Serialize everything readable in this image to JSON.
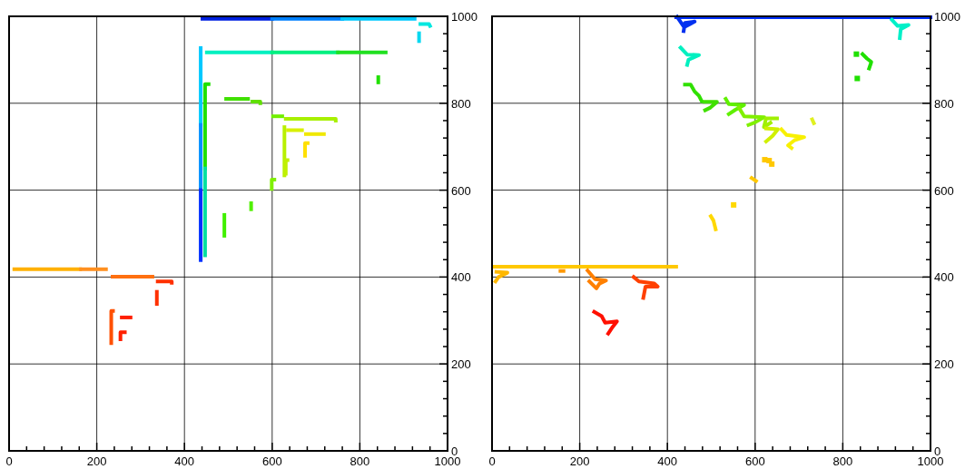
{
  "chart_data": [
    {
      "type": "line",
      "xlim": [
        0,
        1000
      ],
      "ylim": [
        0,
        1000
      ],
      "xticks": [
        0,
        {
          "value": 40,
          "label": null
        },
        {
          "value": 80,
          "label": null
        },
        {
          "value": 120,
          "label": null
        },
        {
          "value": 160,
          "label": null
        },
        200,
        {
          "value": 240,
          "label": null
        },
        {
          "value": 280,
          "label": null
        },
        {
          "value": 320,
          "label": null
        },
        {
          "value": 360,
          "label": null
        },
        400,
        {
          "value": 440,
          "label": null
        },
        {
          "value": 480,
          "label": null
        },
        {
          "value": 520,
          "label": null
        },
        {
          "value": 560,
          "label": null
        },
        600,
        {
          "value": 640,
          "label": null
        },
        {
          "value": 680,
          "label": null
        },
        {
          "value": 720,
          "label": null
        },
        {
          "value": 760,
          "label": null
        },
        800,
        {
          "value": 840,
          "label": null
        },
        {
          "value": 880,
          "label": null
        },
        {
          "value": 920,
          "label": null
        },
        {
          "value": 960,
          "label": null
        },
        1000
      ],
      "yticks": [
        0,
        {
          "value": 40,
          "label": null
        },
        {
          "value": 80,
          "label": null
        },
        {
          "value": 120,
          "label": null
        },
        {
          "value": 160,
          "label": null
        },
        200,
        {
          "value": 240,
          "label": null
        },
        {
          "value": 280,
          "label": null
        },
        {
          "value": 320,
          "label": null
        },
        {
          "value": 360,
          "label": null
        },
        400,
        {
          "value": 440,
          "label": null
        },
        {
          "value": 480,
          "label": null
        },
        {
          "value": 520,
          "label": null
        },
        {
          "value": 560,
          "label": null
        },
        600,
        {
          "value": 640,
          "label": null
        },
        {
          "value": 680,
          "label": null
        },
        {
          "value": 720,
          "label": null
        },
        {
          "value": 760,
          "label": null
        },
        800,
        {
          "value": 840,
          "label": null
        },
        {
          "value": 880,
          "label": null
        },
        {
          "value": 920,
          "label": null
        },
        {
          "value": 960,
          "label": null
        },
        1000
      ],
      "grid": true,
      "series": [
        {
          "x": [
            441,
            600
          ],
          "values": [
            994,
            994
          ],
          "color": "#0020e0"
        },
        {
          "x": [
            600,
            760
          ],
          "values": [
            994,
            994
          ],
          "color": "#0080ff"
        },
        {
          "x": [
            760,
            925
          ],
          "values": [
            994,
            994
          ],
          "color": "#00c8ff"
        },
        {
          "x": [
            938,
            958,
            960
          ],
          "values": [
            982,
            982,
            978
          ],
          "color": "#00e8e0"
        },
        {
          "x": [
            935,
            935
          ],
          "values": [
            961,
            943
          ],
          "color": "#00d8f0"
        },
        {
          "x": [
            437,
            437
          ],
          "values": [
            927,
            750
          ],
          "color": "#00c8ff"
        },
        {
          "x": [
            437,
            437
          ],
          "values": [
            750,
            600
          ],
          "color": "#0090ff"
        },
        {
          "x": [
            437,
            437
          ],
          "values": [
            600,
            439
          ],
          "color": "#0030ff"
        },
        {
          "x": [
            451,
            600
          ],
          "values": [
            917,
            917
          ],
          "color": "#00f0c0"
        },
        {
          "x": [
            600,
            750
          ],
          "values": [
            917,
            917
          ],
          "color": "#00f080"
        },
        {
          "x": [
            750,
            859
          ],
          "values": [
            917,
            917
          ],
          "color": "#20e020"
        },
        {
          "x": [
            455,
            447,
            447
          ],
          "values": [
            844,
            844,
            650
          ],
          "color": "#20e000"
        },
        {
          "x": [
            447,
            447
          ],
          "values": [
            650,
            450
          ],
          "color": "#00e0a0"
        },
        {
          "x": [
            842,
            842
          ],
          "values": [
            860,
            848
          ],
          "color": "#20e000"
        },
        {
          "x": [
            495,
            545
          ],
          "values": [
            810,
            810
          ],
          "color": "#40e000"
        },
        {
          "x": [
            555,
            573,
            573
          ],
          "values": [
            804,
            804,
            800
          ],
          "color": "#60e000"
        },
        {
          "x": [
            602,
            623
          ],
          "values": [
            770,
            770
          ],
          "color": "#70f000"
        },
        {
          "x": [
            631,
            745,
            745
          ],
          "values": [
            764,
            764,
            760
          ],
          "color": "#a8f000"
        },
        {
          "x": [
            628,
            628
          ],
          "values": [
            745,
            634
          ],
          "color": "#b8f000"
        },
        {
          "x": [
            636,
            668
          ],
          "values": [
            738,
            738
          ],
          "color": "#d8f000"
        },
        {
          "x": [
            635,
            631,
            631
          ],
          "values": [
            669,
            669,
            638
          ],
          "color": "#c0f000"
        },
        {
          "x": [
            677,
            718
          ],
          "values": [
            729,
            729
          ],
          "color": "#f0e800"
        },
        {
          "x": [
            681,
            675,
            675
          ],
          "values": [
            708,
            708,
            679
          ],
          "color": "#ffe000"
        },
        {
          "x": [
            605,
            599,
            599
          ],
          "values": [
            624,
            624,
            603
          ],
          "color": "#80f000"
        },
        {
          "x": [
            552,
            552
          ],
          "values": [
            570,
            556
          ],
          "color": "#50f000"
        },
        {
          "x": [
            491,
            491
          ],
          "values": [
            543,
            495
          ],
          "color": "#40f000"
        },
        {
          "x": [
            12,
            162
          ],
          "values": [
            418,
            418
          ],
          "color": "#ffb000"
        },
        {
          "x": [
            164,
            221
          ],
          "values": [
            418,
            418
          ],
          "color": "#ff9020"
        },
        {
          "x": [
            236,
            327
          ],
          "values": [
            401,
            401
          ],
          "color": "#ff7010"
        },
        {
          "x": [
            339,
            371,
            371
          ],
          "values": [
            390,
            390,
            387
          ],
          "color": "#ff3000"
        },
        {
          "x": [
            337,
            337
          ],
          "values": [
            366,
            338
          ],
          "color": "#ff3000"
        },
        {
          "x": [
            237,
            233,
            233
          ],
          "values": [
            322,
            322,
            248
          ],
          "color": "#ff5000"
        },
        {
          "x": [
            257,
            277
          ],
          "values": [
            307,
            307
          ],
          "color": "#ff2000"
        },
        {
          "x": [
            264,
            254,
            254
          ],
          "values": [
            273,
            273,
            257
          ],
          "color": "#ff2000"
        }
      ]
    },
    {
      "type": "line",
      "xlim": [
        0,
        1000
      ],
      "ylim": [
        0,
        1000
      ],
      "xticks": [
        0,
        {
          "value": 40,
          "label": null
        },
        {
          "value": 80,
          "label": null
        },
        {
          "value": 120,
          "label": null
        },
        {
          "value": 160,
          "label": null
        },
        200,
        {
          "value": 240,
          "label": null
        },
        {
          "value": 280,
          "label": null
        },
        {
          "value": 320,
          "label": null
        },
        {
          "value": 360,
          "label": null
        },
        400,
        {
          "value": 440,
          "label": null
        },
        {
          "value": 480,
          "label": null
        },
        {
          "value": 520,
          "label": null
        },
        {
          "value": 560,
          "label": null
        },
        600,
        {
          "value": 640,
          "label": null
        },
        {
          "value": 680,
          "label": null
        },
        {
          "value": 720,
          "label": null
        },
        {
          "value": 760,
          "label": null
        },
        800,
        {
          "value": 840,
          "label": null
        },
        {
          "value": 880,
          "label": null
        },
        {
          "value": 920,
          "label": null
        },
        {
          "value": 960,
          "label": null
        },
        1000
      ],
      "yticks": [
        0,
        {
          "value": 40,
          "label": null
        },
        {
          "value": 80,
          "label": null
        },
        {
          "value": 120,
          "label": null
        },
        {
          "value": 160,
          "label": null
        },
        200,
        {
          "value": 240,
          "label": null
        },
        {
          "value": 280,
          "label": null
        },
        {
          "value": 320,
          "label": null
        },
        {
          "value": 360,
          "label": null
        },
        400,
        {
          "value": 440,
          "label": null
        },
        {
          "value": 480,
          "label": null
        },
        {
          "value": 520,
          "label": null
        },
        {
          "value": 560,
          "label": null
        },
        600,
        {
          "value": 640,
          "label": null
        },
        {
          "value": 680,
          "label": null
        },
        {
          "value": 720,
          "label": null
        },
        {
          "value": 760,
          "label": null
        },
        800,
        {
          "value": 840,
          "label": null
        },
        {
          "value": 880,
          "label": null
        },
        {
          "value": 920,
          "label": null
        },
        {
          "value": 960,
          "label": null
        },
        1000
      ],
      "grid": true,
      "series": [
        {
          "x": [
            420,
            1000
          ],
          "values": [
            998,
            998
          ],
          "color": "#0030ff"
        },
        {
          "x": [
            422,
            438,
            462,
            440,
            437
          ],
          "values": [
            999,
            975,
            988,
            985,
            966
          ],
          "color": "#0030f0"
        },
        {
          "x": [
            430,
            445,
            472,
            448,
            445
          ],
          "values": [
            928,
            912,
            911,
            900,
            888
          ],
          "color": "#00f0c0"
        },
        {
          "x": [
            440,
            453,
            462,
            472,
            478
          ],
          "values": [
            843,
            843,
            827,
            817,
            805
          ],
          "color": "#30e000"
        },
        {
          "x": [
            484,
            513,
            498,
            486
          ],
          "values": [
            803,
            803,
            790,
            784
          ],
          "color": "#40e000"
        },
        {
          "x": [
            533,
            540,
            575,
            555,
            540
          ],
          "values": [
            810,
            798,
            796,
            785,
            775
          ],
          "color": "#60f000"
        },
        {
          "x": [
            563,
            575,
            621,
            600,
            585
          ],
          "values": [
            790,
            770,
            768,
            756,
            750
          ],
          "color": "#80f000"
        },
        {
          "x": [
            650,
            625,
            620,
            635
          ],
          "values": [
            765,
            765,
            745,
            755
          ],
          "color": "#a0f000"
        },
        {
          "x": [
            625,
            652,
            640,
            625
          ],
          "values": [
            742,
            740,
            725,
            712
          ],
          "color": "#d0f000"
        },
        {
          "x": [
            660,
            672,
            712,
            690,
            675,
            683
          ],
          "values": [
            740,
            727,
            722,
            715,
            703,
            697
          ],
          "color": "#f8f000"
        },
        {
          "x": [
            730,
            734
          ],
          "values": [
            763,
            754
          ],
          "color": "#e0f020"
        },
        {
          "type": "scatter",
          "x": [
            622,
            632,
            638
          ],
          "values": [
            670,
            668,
            660
          ],
          "color": "#ffc800"
        },
        {
          "x": [
            592,
            602
          ],
          "values": [
            628,
            621
          ],
          "color": "#ffc800"
        },
        {
          "x": [
            912,
            925,
            950,
            932,
            930
          ],
          "values": [
            992,
            978,
            980,
            970,
            950
          ],
          "color": "#00f0c8"
        },
        {
          "x": [
            845,
            855,
            865,
            860
          ],
          "values": [
            913,
            903,
            895,
            880
          ],
          "color": "#20e000"
        },
        {
          "type": "scatter",
          "x": [
            831
          ],
          "values": [
            913
          ],
          "color": "#20e000"
        },
        {
          "type": "scatter",
          "x": [
            833
          ],
          "values": [
            857
          ],
          "color": "#20e000"
        },
        {
          "x": [
            499,
            505,
            510
          ],
          "values": [
            540,
            530,
            510
          ],
          "color": "#ffd800"
        },
        {
          "type": "scatter",
          "x": [
            551
          ],
          "values": [
            566
          ],
          "color": "#ffd800"
        },
        {
          "x": [
            2,
            420
          ],
          "values": [
            424,
            424
          ],
          "color": "#ffc800"
        },
        {
          "x": [
            10,
            35,
            15,
            8
          ],
          "values": [
            412,
            410,
            400,
            390
          ],
          "color": "#ffb800"
        },
        {
          "x": [
            156,
            163
          ],
          "values": [
            414,
            414
          ],
          "color": "#ff9800"
        },
        {
          "x": [
            218,
            235,
            260,
            245,
            238,
            222
          ],
          "values": [
            415,
            395,
            392,
            385,
            374,
            390
          ],
          "color": "#ff8000"
        },
        {
          "x": [
            323,
            335,
            370,
            378,
            350,
            345
          ],
          "values": [
            400,
            390,
            385,
            378,
            378,
            352
          ],
          "color": "#ff4000"
        },
        {
          "x": [
            233,
            250,
            258,
            285,
            275,
            265
          ],
          "values": [
            320,
            310,
            295,
            298,
            285,
            270
          ],
          "color": "#ff1000"
        }
      ]
    }
  ]
}
